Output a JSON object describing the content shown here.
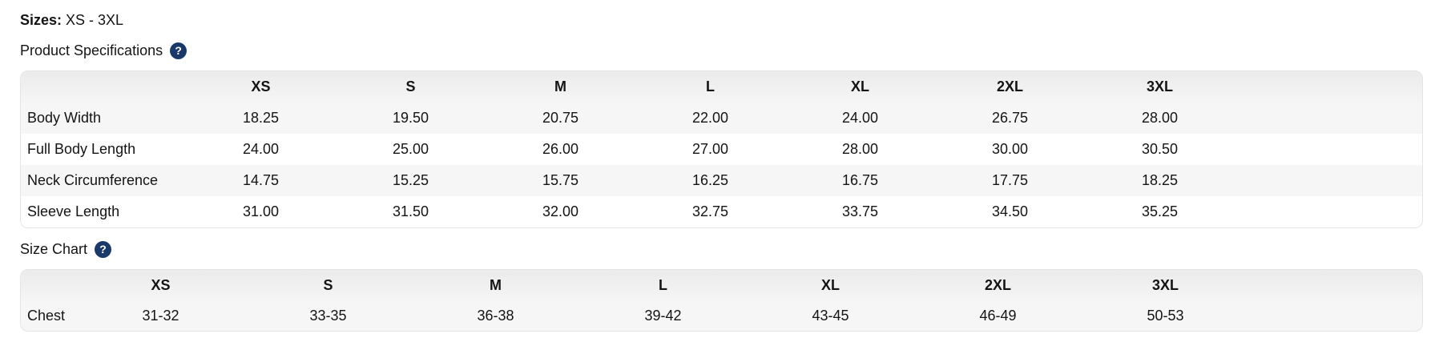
{
  "colors": {
    "help_icon_bg": "#19396B",
    "row_stripe": "#F6F6F7",
    "header_bg_top": "#EBEBEB",
    "header_bg_bottom": "#F5F5F5",
    "table_border": "#E4E4E4",
    "text": "#141414"
  },
  "sizes": {
    "label": "Sizes:",
    "value": "XS - 3XL"
  },
  "product_specifications": {
    "title": "Product Specifications",
    "help_icon": "question-circle-icon",
    "help_glyph": "?",
    "table": {
      "columns": [
        "XS",
        "S",
        "M",
        "L",
        "XL",
        "2XL",
        "3XL"
      ],
      "rows": [
        {
          "label": "Body Width",
          "values": [
            "18.25",
            "19.50",
            "20.75",
            "22.00",
            "24.00",
            "26.75",
            "28.00"
          ]
        },
        {
          "label": "Full Body Length",
          "values": [
            "24.00",
            "25.00",
            "26.00",
            "27.00",
            "28.00",
            "30.00",
            "30.50"
          ]
        },
        {
          "label": "Neck Circumference",
          "values": [
            "14.75",
            "15.25",
            "15.75",
            "16.25",
            "16.75",
            "17.75",
            "18.25"
          ]
        },
        {
          "label": "Sleeve Length",
          "values": [
            "31.00",
            "31.50",
            "32.00",
            "32.75",
            "33.75",
            "34.50",
            "35.25"
          ]
        }
      ]
    }
  },
  "size_chart": {
    "title": "Size Chart",
    "help_icon": "question-circle-icon",
    "help_glyph": "?",
    "table": {
      "columns": [
        "XS",
        "S",
        "M",
        "L",
        "XL",
        "2XL",
        "3XL"
      ],
      "rows": [
        {
          "label": "Chest",
          "values": [
            "31-32",
            "33-35",
            "36-38",
            "39-42",
            "43-45",
            "46-49",
            "50-53"
          ]
        }
      ]
    }
  }
}
